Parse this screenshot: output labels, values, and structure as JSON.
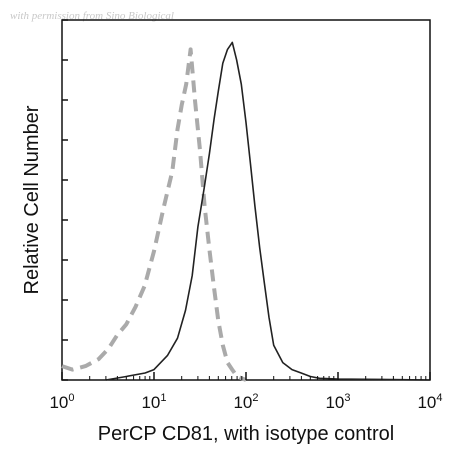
{
  "watermark": "with permission from Sino Biological",
  "chart_data": {
    "type": "line",
    "title": "",
    "xlabel": "PerCP CD81, with isotype control",
    "ylabel": "Relative Cell Number",
    "x_scale": "log",
    "xlim": [
      1,
      10000
    ],
    "ylim": [
      0,
      1
    ],
    "x_ticks": [
      {
        "base": "10",
        "exp": "0",
        "value": 1
      },
      {
        "base": "10",
        "exp": "1",
        "value": 10
      },
      {
        "base": "10",
        "exp": "2",
        "value": 100
      },
      {
        "base": "10",
        "exp": "3",
        "value": 1000
      },
      {
        "base": "10",
        "exp": "4",
        "value": 10000
      }
    ],
    "grid": false,
    "legend": "none",
    "series": [
      {
        "style": "dashed",
        "color": "#aaaaaa",
        "x": [
          1.0,
          1.3,
          1.8,
          2.5,
          3.2,
          4.0,
          5.0,
          6.3,
          7.9,
          10,
          12.6,
          15.8,
          18,
          20,
          22.4,
          25,
          28,
          31.6,
          35.5,
          39.8,
          44.7,
          50,
          56,
          63,
          70.8,
          80,
          100
        ],
        "y": [
          0.04,
          0.03,
          0.04,
          0.06,
          0.09,
          0.13,
          0.16,
          0.21,
          0.27,
          0.37,
          0.49,
          0.6,
          0.72,
          0.79,
          0.85,
          0.95,
          0.8,
          0.66,
          0.5,
          0.38,
          0.27,
          0.17,
          0.1,
          0.05,
          0.03,
          0.01,
          0.0
        ]
      },
      {
        "style": "solid",
        "color": "#222222",
        "x": [
          3,
          5,
          8,
          10,
          14,
          18,
          22,
          26,
          30,
          35,
          40,
          45,
          50,
          56,
          63,
          71,
          79,
          89,
          100,
          112,
          125,
          141,
          158,
          178,
          200,
          251,
          316,
          398,
          501,
          631,
          1000,
          2000,
          5000,
          10000
        ],
        "y": [
          0.0,
          0.01,
          0.02,
          0.03,
          0.07,
          0.12,
          0.2,
          0.3,
          0.44,
          0.55,
          0.65,
          0.75,
          0.83,
          0.91,
          0.95,
          0.97,
          0.92,
          0.85,
          0.74,
          0.62,
          0.5,
          0.38,
          0.28,
          0.18,
          0.1,
          0.05,
          0.03,
          0.02,
          0.01,
          0.005,
          0.003,
          0.002,
          0.001,
          0.0
        ]
      }
    ]
  }
}
